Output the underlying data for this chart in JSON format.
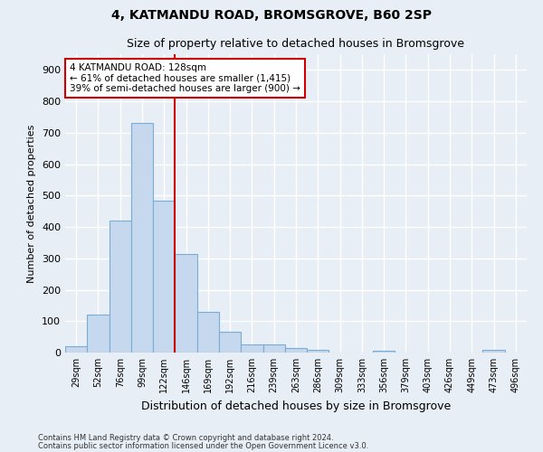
{
  "title1": "4, KATMANDU ROAD, BROMSGROVE, B60 2SP",
  "title2": "Size of property relative to detached houses in Bromsgrove",
  "xlabel": "Distribution of detached houses by size in Bromsgrove",
  "ylabel": "Number of detached properties",
  "categories": [
    "29sqm",
    "52sqm",
    "76sqm",
    "99sqm",
    "122sqm",
    "146sqm",
    "169sqm",
    "192sqm",
    "216sqm",
    "239sqm",
    "263sqm",
    "286sqm",
    "309sqm",
    "333sqm",
    "356sqm",
    "379sqm",
    "403sqm",
    "426sqm",
    "449sqm",
    "473sqm",
    "496sqm"
  ],
  "values": [
    20,
    122,
    420,
    730,
    483,
    315,
    130,
    65,
    25,
    25,
    15,
    8,
    0,
    0,
    5,
    0,
    0,
    0,
    0,
    8,
    0
  ],
  "bar_color": "#c5d8ed",
  "bar_edge_color": "#7aadd4",
  "vline_x": 4.5,
  "vline_color": "#cc0000",
  "annotation_text": "4 KATMANDU ROAD: 128sqm\n← 61% of detached houses are smaller (1,415)\n39% of semi-detached houses are larger (900) →",
  "annotation_box_color": "#ffffff",
  "annotation_box_edge": "#cc0000",
  "bg_color": "#e8eef5",
  "grid_color": "#ffffff",
  "ylim": [
    0,
    950
  ],
  "footer1": "Contains HM Land Registry data © Crown copyright and database right 2024.",
  "footer2": "Contains public sector information licensed under the Open Government Licence v3.0."
}
